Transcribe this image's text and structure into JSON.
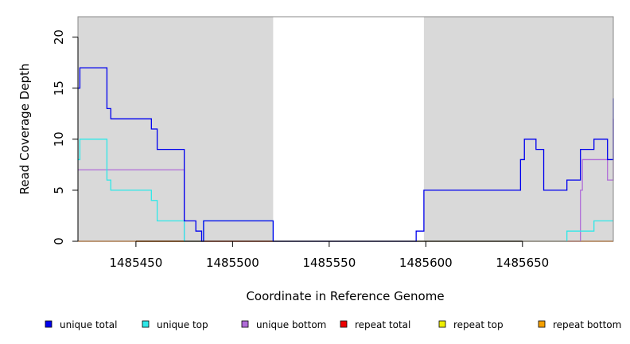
{
  "chart_data": {
    "type": "line",
    "step": true,
    "xlabel": "Coordinate in Reference Genome",
    "ylabel": "Read Coverage Depth",
    "xlim": [
      1485420,
      1485697
    ],
    "ylim": [
      0,
      22
    ],
    "x_ticks": [
      1485450,
      1485500,
      1485550,
      1485600,
      1485650
    ],
    "y_ticks": [
      0,
      5,
      10,
      15,
      20
    ],
    "shaded_regions": [
      {
        "from": 1485420,
        "to": 1485521,
        "color": "#d9d9d9"
      },
      {
        "from": 1485599,
        "to": 1485697,
        "color": "#d9d9d9"
      }
    ],
    "legend_position": "bottom",
    "series": [
      {
        "name": "unique total",
        "color": "#0000ee",
        "points": [
          [
            1485420,
            15
          ],
          [
            1485421,
            17
          ],
          [
            1485435,
            13
          ],
          [
            1485437,
            12
          ],
          [
            1485458,
            11
          ],
          [
            1485461,
            9
          ],
          [
            1485475,
            2
          ],
          [
            1485481,
            1
          ],
          [
            1485484,
            0
          ],
          [
            1485485,
            2
          ],
          [
            1485521,
            0
          ],
          [
            1485595,
            1
          ],
          [
            1485599,
            5
          ],
          [
            1485649,
            8
          ],
          [
            1485651,
            10
          ],
          [
            1485657,
            9
          ],
          [
            1485661,
            5
          ],
          [
            1485673,
            6
          ],
          [
            1485680,
            9
          ],
          [
            1485687,
            10
          ],
          [
            1485694,
            8
          ],
          [
            1485697,
            14
          ]
        ]
      },
      {
        "name": "unique top",
        "color": "#2ee8e8",
        "points": [
          [
            1485420,
            8
          ],
          [
            1485421,
            10
          ],
          [
            1485435,
            6
          ],
          [
            1485437,
            5
          ],
          [
            1485458,
            4
          ],
          [
            1485461,
            2
          ],
          [
            1485475,
            0
          ],
          [
            1485485,
            2
          ],
          [
            1485521,
            0
          ],
          [
            1485673,
            1
          ],
          [
            1485687,
            2
          ]
        ]
      },
      {
        "name": "unique bottom",
        "color": "#b06cd8",
        "points": [
          [
            1485420,
            7
          ],
          [
            1485475,
            0
          ],
          [
            1485680,
            5
          ],
          [
            1485681,
            8
          ],
          [
            1485694,
            6
          ],
          [
            1485697,
            12
          ]
        ]
      },
      {
        "name": "repeat total",
        "color": "#ee0000",
        "points": [
          [
            1485420,
            0
          ]
        ]
      },
      {
        "name": "repeat top",
        "color": "#eeee00",
        "points": [
          [
            1485420,
            0
          ]
        ]
      },
      {
        "name": "repeat bottom",
        "color": "#f5a000",
        "points": [
          [
            1485420,
            0
          ]
        ]
      }
    ]
  }
}
